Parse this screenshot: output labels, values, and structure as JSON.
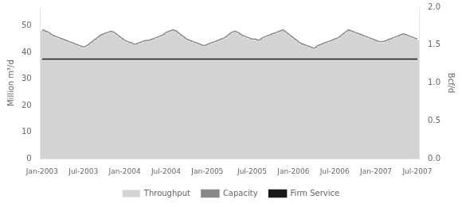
{
  "chart_data": {
    "type": "bar",
    "ylabel": "Million m³/d",
    "y2label": "Bcf/d",
    "categories": [
      "Jan-2003",
      null,
      null,
      null,
      null,
      null,
      null,
      null,
      null,
      null,
      null,
      null,
      "Jul-2003",
      null,
      null,
      null,
      null,
      null,
      null,
      null,
      null,
      null,
      null,
      null,
      "Jan-2004",
      null,
      null,
      null,
      null,
      null,
      null,
      null,
      null,
      null,
      null,
      null,
      "Jul-2004",
      null,
      null,
      null,
      null,
      null,
      null,
      null,
      null,
      null,
      null,
      null,
      "Jan-2005",
      null,
      null,
      null,
      null,
      null,
      null,
      null,
      null,
      null,
      null,
      null,
      null,
      "Jul-2005",
      null,
      null,
      null,
      null,
      null,
      null,
      null,
      null,
      null,
      null,
      null,
      "Jan-2006",
      null,
      null,
      null,
      null,
      null,
      null,
      null,
      null,
      null,
      null,
      null,
      "Jul-2006",
      null,
      null,
      null,
      null,
      null,
      null,
      null,
      null,
      null,
      null,
      null,
      "Jan-2007",
      null,
      null,
      null,
      null,
      null,
      null,
      null,
      null,
      null,
      null,
      null,
      "Jul-2007"
    ],
    "series": [
      {
        "name": "Throughput",
        "type": "bar",
        "color": "#d3d3d3",
        "values": [
          48.0,
          47.5,
          47.0,
          46.0,
          45.5,
          45.0,
          44.5,
          44.0,
          43.5,
          43.0,
          42.5,
          42.0,
          41.5,
          42.0,
          43.0,
          44.0,
          45.0,
          46.0,
          46.5,
          47.0,
          47.5,
          47.0,
          46.0,
          45.0,
          44.0,
          43.5,
          43.0,
          42.5,
          43.0,
          43.5,
          44.0,
          44.0,
          44.5,
          45.0,
          45.5,
          46.0,
          47.0,
          47.5,
          48.0,
          47.5,
          46.5,
          45.5,
          44.5,
          44.0,
          43.5,
          43.0,
          42.5,
          42.0,
          42.5,
          43.0,
          43.5,
          44.0,
          44.5,
          45.0,
          46.0,
          47.0,
          47.5,
          47.0,
          46.0,
          45.5,
          45.0,
          44.5,
          44.5,
          44.0,
          45.0,
          45.5,
          46.0,
          46.5,
          47.0,
          47.5,
          48.0,
          47.0,
          46.0,
          45.0,
          44.0,
          43.0,
          42.5,
          42.0,
          41.5,
          41.0,
          42.0,
          42.5,
          43.0,
          43.5,
          44.0,
          44.5,
          45.0,
          46.0,
          47.0,
          48.0,
          47.5,
          47.0,
          46.5,
          46.0,
          45.5,
          45.0,
          44.5,
          44.0,
          43.5,
          43.5,
          44.0,
          44.5,
          45.0,
          45.5,
          46.0,
          46.5,
          46.0,
          45.5,
          45.0,
          44.5
        ]
      },
      {
        "name": "Capacity",
        "type": "line",
        "color": "#888888",
        "values": [
          48.5,
          48.0,
          47.5,
          46.5,
          46.0,
          45.5,
          45.0,
          44.5,
          44.0,
          43.5,
          43.0,
          42.5,
          42.0,
          42.5,
          43.5,
          44.5,
          45.5,
          46.5,
          47.0,
          47.5,
          48.0,
          47.5,
          46.5,
          45.5,
          44.5,
          44.0,
          43.5,
          43.0,
          43.5,
          44.0,
          44.5,
          44.5,
          45.0,
          45.5,
          46.0,
          46.5,
          47.5,
          48.0,
          48.5,
          48.0,
          47.0,
          46.0,
          45.0,
          44.5,
          44.0,
          43.5,
          43.0,
          42.5,
          43.0,
          43.5,
          44.0,
          44.5,
          45.0,
          45.5,
          46.5,
          47.5,
          48.0,
          47.5,
          46.5,
          46.0,
          45.5,
          45.0,
          45.0,
          44.5,
          45.5,
          46.0,
          46.5,
          47.0,
          47.5,
          48.0,
          48.5,
          47.5,
          46.5,
          45.5,
          44.5,
          43.5,
          43.0,
          42.5,
          42.0,
          41.5,
          42.5,
          43.0,
          43.5,
          44.0,
          44.5,
          45.0,
          45.5,
          46.5,
          47.5,
          48.5,
          48.0,
          47.5,
          47.0,
          46.5,
          46.0,
          45.5,
          45.0,
          44.5,
          44.0,
          44.0,
          44.5,
          45.0,
          45.5,
          46.0,
          46.5,
          47.0,
          46.5,
          46.0,
          45.5,
          45.0
        ]
      },
      {
        "name": "Firm Service",
        "type": "line",
        "color": "#1a1a1a",
        "values": [
          37.5,
          37.5,
          37.5,
          37.5,
          37.5,
          37.5,
          37.5,
          37.5,
          37.5,
          37.5,
          37.5,
          37.5,
          37.5,
          37.5,
          37.5,
          37.5,
          37.5,
          37.5,
          37.5,
          37.5,
          37.5,
          37.5,
          37.5,
          37.5,
          37.5,
          37.5,
          37.5,
          37.5,
          37.5,
          37.5,
          37.5,
          37.5,
          37.5,
          37.5,
          37.5,
          37.5,
          37.5,
          37.5,
          37.5,
          37.5,
          37.5,
          37.5,
          37.5,
          37.5,
          37.5,
          37.5,
          37.5,
          37.5,
          37.5,
          37.5,
          37.5,
          37.5,
          37.5,
          37.5,
          37.5,
          37.5,
          37.5,
          37.5,
          37.5,
          37.5,
          37.5,
          37.5,
          37.5,
          37.5,
          37.5,
          37.5,
          37.5,
          37.5,
          37.5,
          37.5,
          37.5,
          37.5,
          37.5,
          37.5,
          37.5,
          37.5,
          37.5,
          37.5,
          37.5,
          37.5,
          37.5,
          37.5,
          37.5,
          37.5,
          37.5,
          37.5,
          37.5,
          37.5,
          37.5,
          37.5,
          37.5,
          37.5,
          37.5,
          37.5,
          37.5,
          37.5,
          37.5,
          37.5,
          37.5,
          37.5,
          37.5,
          37.5,
          37.5,
          37.5,
          37.5,
          37.5,
          37.5,
          37.5,
          37.5,
          37.5
        ]
      }
    ],
    "ylim": [
      0,
      57
    ],
    "yticks": [
      0,
      10,
      20,
      30,
      40,
      50
    ],
    "y2lim": [
      0,
      2
    ],
    "y2ticks": [
      {
        "value": 0,
        "label": "0.0"
      },
      0.5,
      {
        "value": 1,
        "label": "1.0"
      },
      1.5,
      {
        "value": 2,
        "label": "2.0"
      }
    ],
    "grid": false,
    "legend": "bottom"
  }
}
